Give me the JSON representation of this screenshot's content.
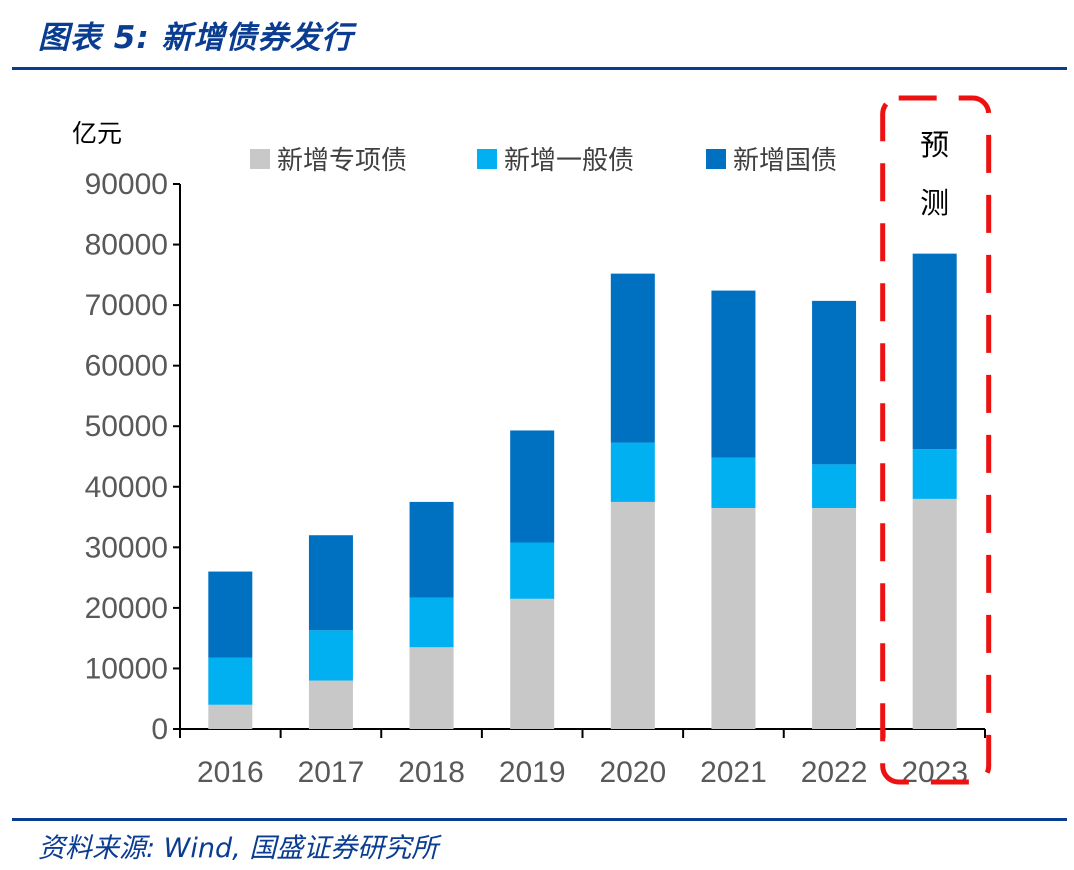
{
  "header": {
    "title": "图表 5:  新增债券发行"
  },
  "footer": {
    "source": "资料来源:  Wind,  国盛证券研究所"
  },
  "chart_data": {
    "type": "bar",
    "stacked": true,
    "unit_label": "亿元",
    "categories": [
      "2016",
      "2017",
      "2018",
      "2019",
      "2020",
      "2021",
      "2022",
      "2023"
    ],
    "ylim": [
      0,
      90000
    ],
    "yticks": [
      "0",
      "10000",
      "20000",
      "30000",
      "40000",
      "50000",
      "60000",
      "70000",
      "80000",
      "90000"
    ],
    "legend_position": "top",
    "series": [
      {
        "name": "新增专项债",
        "color": "#c8c8c8",
        "values": [
          4000,
          8000,
          13500,
          21500,
          37500,
          36500,
          36500,
          38000
        ]
      },
      {
        "name": "新增一般债",
        "color": "#00b0f0",
        "values": [
          7800,
          8300,
          8200,
          9300,
          9800,
          8300,
          7200,
          8200
        ]
      },
      {
        "name": "新增国债",
        "color": "#0070c0",
        "values": [
          14200,
          15700,
          15800,
          18500,
          27900,
          27600,
          27000,
          32300
        ]
      }
    ],
    "annotation": {
      "text": [
        "预",
        "测"
      ],
      "target": "2023",
      "border_color": "#ee1111"
    },
    "grid": false
  }
}
